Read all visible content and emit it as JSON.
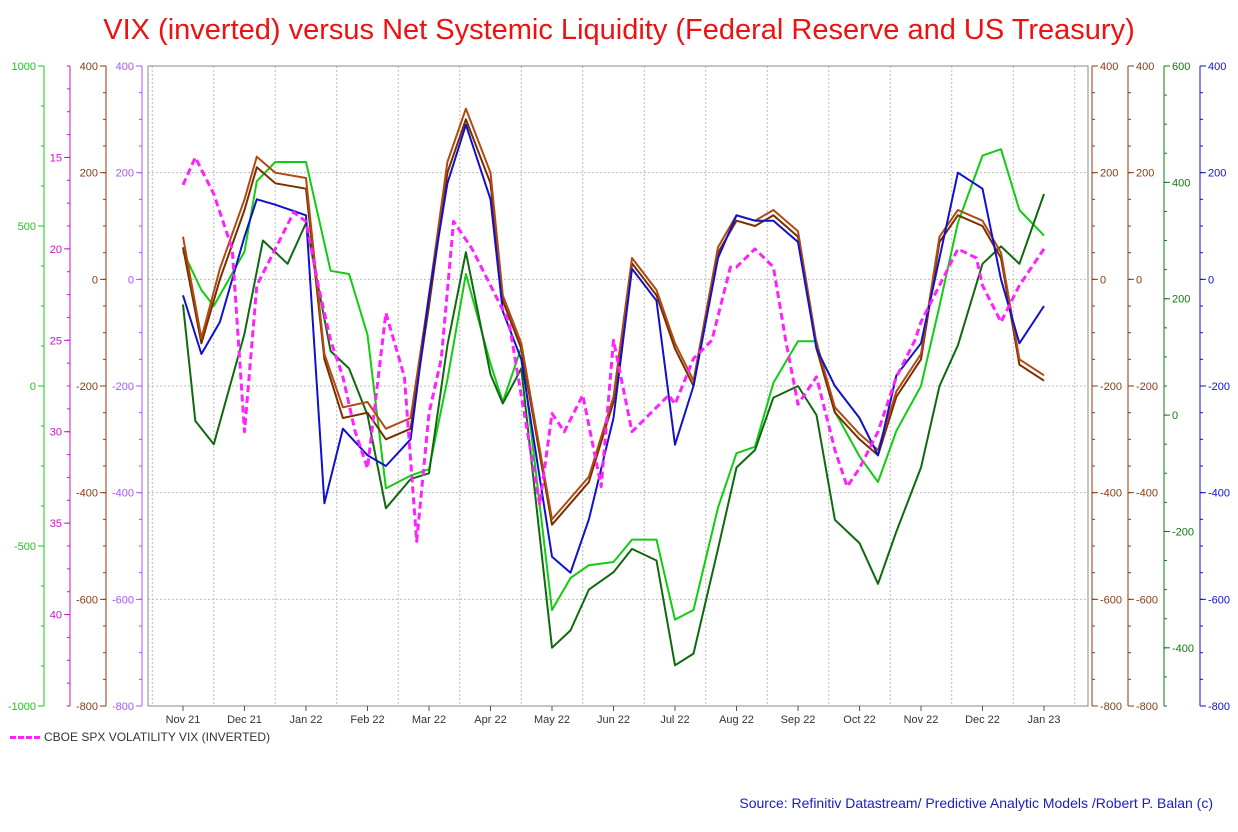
{
  "colors": {
    "title": "#ee1111",
    "vix": "#ff22ff",
    "brown_dark": "#7a2e00",
    "brown_light": "#b04a12",
    "green_light": "#11cc11",
    "green_dark": "#0f6a0f",
    "blue": "#1111cc",
    "grid": "#bbbbbb",
    "axis_green_light": "#11cc11",
    "axis_magenta": "#cc11cc",
    "axis_brown": "#8a3b12",
    "axis_violet": "#aa55ff",
    "axis_green_dark": "#0f7a0f",
    "axis_blue": "#1111cc",
    "source": "#1a1acc"
  },
  "chart_data": {
    "type": "line",
    "title": "VIX (inverted) versus Net Systemic Liquidity (Federal Reserve and US Treasury)",
    "x_tick_labels": [
      "Nov 21",
      "Dec 21",
      "Jan 22",
      "Feb 22",
      "Mar 22",
      "Apr 22",
      "May 22",
      "Jun 22",
      "Jul 22",
      "Aug 22",
      "Sep 22",
      "Oct 22",
      "Nov 22",
      "Dec 22",
      "Jan 23"
    ],
    "axes": [
      {
        "id": "green_outer",
        "side": "left",
        "color_key": "axis_green_light",
        "min": -1000,
        "max": 1000,
        "ticks": [
          1000,
          500,
          0,
          -500,
          -1000
        ],
        "tick_labels": [
          "1000",
          "500",
          "0",
          "-500",
          "-1000"
        ]
      },
      {
        "id": "vix",
        "side": "left",
        "color_key": "axis_magenta",
        "min": 10,
        "max": 45,
        "inverted": true,
        "ticks": [
          15,
          20,
          25,
          30,
          35,
          40
        ],
        "tick_labels": [
          "15",
          "20",
          "25",
          "30",
          "35",
          "40"
        ]
      },
      {
        "id": "brown_left",
        "side": "left",
        "color_key": "axis_brown",
        "min": -800,
        "max": 400,
        "ticks": [
          400,
          200,
          0,
          -200,
          -400,
          -600,
          -800
        ],
        "tick_labels": [
          "400",
          "200",
          "0",
          "-200",
          "-400",
          "-600",
          "-800"
        ]
      },
      {
        "id": "violet_left",
        "side": "left",
        "color_key": "axis_violet",
        "min": -800,
        "max": 400,
        "ticks": [
          400,
          200,
          0,
          -200,
          -400,
          -600,
          -800
        ],
        "tick_labels": [
          "400",
          "200",
          "0",
          "-200",
          "-400",
          "-600",
          "-800"
        ]
      },
      {
        "id": "brown_right1",
        "side": "right",
        "color_key": "axis_brown",
        "min": -800,
        "max": 400,
        "ticks": [
          400,
          200,
          0,
          -200,
          -400,
          -600,
          -800
        ],
        "tick_labels": [
          "400",
          "200",
          "0",
          "-200",
          "-400",
          "-600",
          "-800"
        ]
      },
      {
        "id": "brown_right2",
        "side": "right",
        "color_key": "axis_brown",
        "min": -800,
        "max": 400,
        "ticks": [
          400,
          200,
          0,
          -200,
          -400,
          -600,
          -800
        ],
        "tick_labels": [
          "400",
          "200",
          "0",
          "-200",
          "-400",
          "-600",
          "-800"
        ]
      },
      {
        "id": "green_right",
        "side": "right",
        "color_key": "axis_green_dark",
        "min": -500,
        "max": 600,
        "ticks": [
          600,
          400,
          200,
          0,
          -200,
          -400
        ],
        "tick_labels": [
          "600",
          "400",
          "200",
          "0",
          "-200",
          "-400"
        ]
      },
      {
        "id": "blue_right",
        "side": "right",
        "color_key": "axis_blue",
        "min": -800,
        "max": 400,
        "ticks": [
          400,
          200,
          0,
          -200,
          -400,
          -600,
          -800
        ],
        "tick_labels": [
          "400",
          "200",
          "0",
          "-200",
          "-400",
          "-600",
          "-800"
        ]
      }
    ],
    "series": [
      {
        "id": "green_light",
        "axis": "green_outer",
        "color_key": "green_light",
        "dashed": false,
        "t": [
          0,
          0.3,
          0.5,
          1,
          1.2,
          1.5,
          2,
          2.4,
          2.7,
          3,
          3.3,
          3.7,
          4,
          4.3,
          4.6,
          5,
          5.2,
          5.5,
          6,
          6.3,
          6.6,
          7,
          7.3,
          7.7,
          8,
          8.3,
          8.7,
          9,
          9.3,
          9.6,
          10,
          10.3,
          10.6,
          11,
          11.3,
          11.6,
          12,
          12.3,
          12.6,
          13,
          13.3,
          13.6,
          14
        ],
        "values": [
          420,
          300,
          250,
          420,
          640,
          700,
          700,
          360,
          350,
          160,
          -320,
          -280,
          -260,
          20,
          350,
          70,
          -50,
          120,
          -700,
          -600,
          -560,
          -550,
          -480,
          -480,
          -730,
          -700,
          -380,
          -210,
          -190,
          10,
          140,
          140,
          -80,
          -220,
          -300,
          -140,
          0,
          250,
          510,
          720,
          740,
          550,
          470
        ]
      },
      {
        "id": "green_dark",
        "axis": "green_right",
        "color_key": "green_dark",
        "dashed": false,
        "t": [
          0,
          0.2,
          0.5,
          1,
          1.3,
          1.7,
          2,
          2.4,
          2.7,
          3,
          3.3,
          3.7,
          4,
          4.3,
          4.6,
          5,
          5.2,
          5.5,
          6,
          6.3,
          6.6,
          7,
          7.3,
          7.7,
          8,
          8.3,
          8.7,
          9,
          9.3,
          9.6,
          10,
          10.3,
          10.6,
          11,
          11.3,
          11.6,
          12,
          12.3,
          12.6,
          13,
          13.3,
          13.6,
          14
        ],
        "values": [
          190,
          -10,
          -50,
          140,
          300,
          260,
          330,
          110,
          80,
          0,
          -160,
          -110,
          -100,
          120,
          280,
          70,
          20,
          80,
          -400,
          -370,
          -300,
          -270,
          -230,
          -250,
          -430,
          -410,
          -230,
          -90,
          -60,
          30,
          50,
          0,
          -180,
          -220,
          -290,
          -200,
          -90,
          50,
          120,
          260,
          290,
          260,
          380
        ]
      },
      {
        "id": "brown_dark",
        "axis": "brown_left",
        "color_key": "brown_dark",
        "dashed": false,
        "t": [
          0,
          0.3,
          0.6,
          1,
          1.2,
          1.5,
          2,
          2.3,
          2.6,
          3,
          3.3,
          3.7,
          4,
          4.3,
          4.6,
          5,
          5.2,
          5.5,
          6,
          6.3,
          6.6,
          7,
          7.3,
          7.7,
          8,
          8.3,
          8.7,
          9,
          9.3,
          9.6,
          10,
          10.3,
          10.6,
          11,
          11.3,
          11.6,
          12,
          12.3,
          12.6,
          13,
          13.3,
          13.6,
          14
        ],
        "values": [
          60,
          -120,
          0,
          130,
          210,
          180,
          170,
          -150,
          -260,
          -250,
          -300,
          -280,
          -50,
          200,
          300,
          180,
          -40,
          -130,
          -460,
          -420,
          -380,
          -230,
          30,
          -30,
          -130,
          -200,
          50,
          110,
          100,
          120,
          80,
          -130,
          -250,
          -300,
          -330,
          -220,
          -150,
          70,
          120,
          100,
          40,
          -160,
          -190
        ]
      },
      {
        "id": "brown_light",
        "axis": "brown_left",
        "color_key": "brown_light",
        "dashed": false,
        "t": [
          0,
          0.3,
          0.6,
          1,
          1.2,
          1.5,
          2,
          2.3,
          2.6,
          3,
          3.3,
          3.7,
          4,
          4.3,
          4.6,
          5,
          5.2,
          5.5,
          6,
          6.3,
          6.6,
          7,
          7.3,
          7.7,
          8,
          8.3,
          8.7,
          9,
          9.3,
          9.6,
          10,
          10.3,
          10.6,
          11,
          11.3,
          11.6,
          12,
          12.3,
          12.6,
          13,
          13.3,
          13.6,
          14
        ],
        "values": [
          80,
          -110,
          20,
          150,
          230,
          200,
          190,
          -140,
          -240,
          -230,
          -280,
          -260,
          -30,
          220,
          320,
          200,
          -30,
          -120,
          -450,
          -410,
          -370,
          -220,
          40,
          -20,
          -120,
          -190,
          60,
          120,
          110,
          130,
          90,
          -120,
          -240,
          -290,
          -320,
          -210,
          -140,
          80,
          130,
          110,
          50,
          -150,
          -180
        ]
      },
      {
        "id": "blue",
        "axis": "blue_right",
        "color_key": "blue",
        "dashed": false,
        "t": [
          0,
          0.3,
          0.6,
          1,
          1.2,
          1.5,
          2,
          2.3,
          2.6,
          3,
          3.3,
          3.7,
          4,
          4.3,
          4.6,
          5,
          5.2,
          5.5,
          6,
          6.3,
          6.6,
          7,
          7.3,
          7.7,
          8,
          8.3,
          8.7,
          9,
          9.3,
          9.6,
          10,
          10.3,
          10.6,
          11,
          11.3,
          11.6,
          12,
          12.3,
          12.6,
          13,
          13.3,
          13.6,
          14
        ],
        "values": [
          -30,
          -140,
          -80,
          80,
          150,
          140,
          120,
          -420,
          -280,
          -330,
          -350,
          -300,
          -30,
          180,
          290,
          150,
          -60,
          -150,
          -520,
          -550,
          -450,
          -260,
          20,
          -40,
          -310,
          -200,
          40,
          120,
          110,
          110,
          70,
          -130,
          -200,
          -260,
          -330,
          -180,
          -120,
          40,
          200,
          170,
          0,
          -120,
          -50
        ]
      },
      {
        "id": "vix",
        "axis": "vix",
        "color_key": "vix",
        "dashed": true,
        "t": [
          0,
          0.2,
          0.5,
          0.8,
          1,
          1.2,
          1.5,
          1.8,
          2,
          2.2,
          2.4,
          2.6,
          2.8,
          3,
          3.3,
          3.6,
          3.8,
          4,
          4.2,
          4.4,
          4.7,
          5,
          5.3,
          5.6,
          5.8,
          6,
          6.2,
          6.5,
          6.8,
          7,
          7.3,
          7.6,
          7.9,
          8,
          8.3,
          8.6,
          8.9,
          9,
          9.3,
          9.6,
          9.8,
          10,
          10.3,
          10.6,
          10.8,
          11,
          11.3,
          11.6,
          11.9,
          12,
          12.3,
          12.6,
          12.9,
          13,
          13.3,
          13.6,
          14
        ],
        "values": [
          16.5,
          15,
          17,
          20,
          30,
          22,
          20,
          18,
          18.5,
          22,
          25,
          27,
          30,
          32,
          23.5,
          27,
          36,
          29,
          26,
          18.5,
          20,
          22,
          24,
          30,
          34,
          29,
          30,
          28,
          33,
          25,
          30,
          29,
          28,
          28.5,
          26,
          25,
          21,
          21,
          20,
          21,
          25,
          28.5,
          27,
          31,
          33,
          32,
          30,
          27,
          25,
          24,
          22,
          20,
          20.5,
          22,
          24,
          22,
          20
        ]
      }
    ],
    "legend_label": "CBOE SPX VOLATILITY VIX (INVERTED)",
    "source": "Source: Refinitiv Datastream/ Predictive Analytic Models /Robert P. Balan (c)",
    "grid": true,
    "legend_position": "bottom-left"
  }
}
